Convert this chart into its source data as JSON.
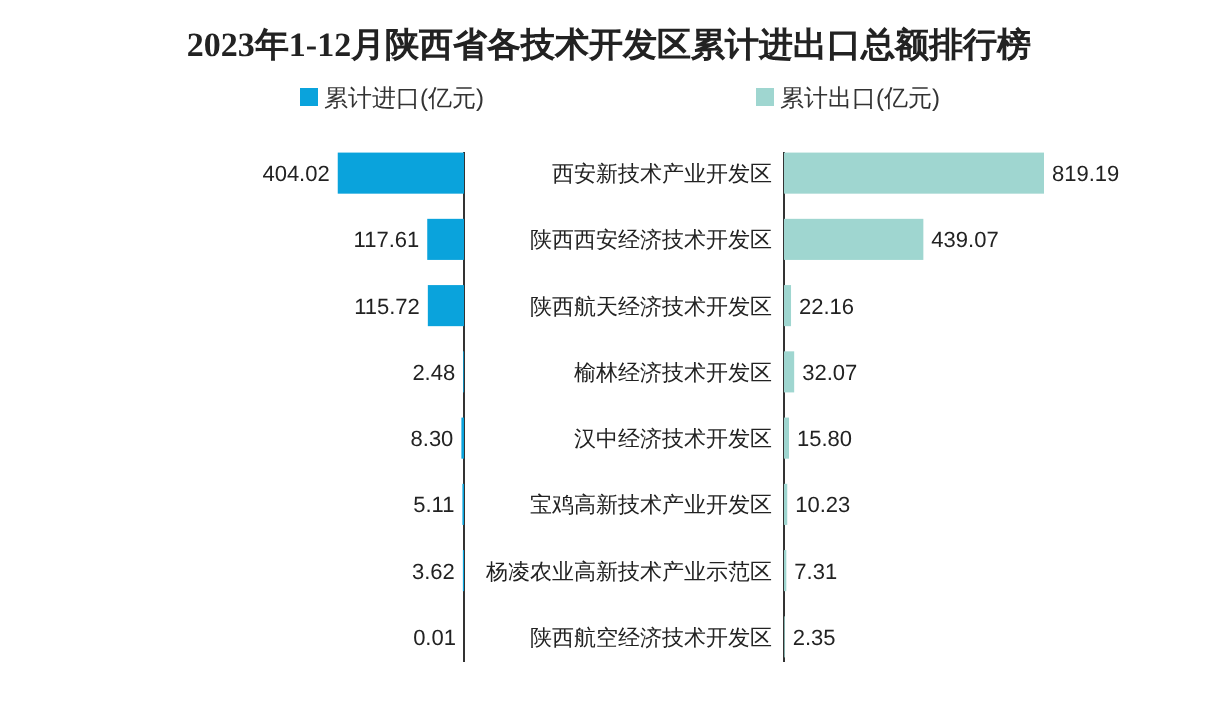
{
  "chart_data": [
    {
      "type": "bar",
      "orientation": "horizontal",
      "title": "2023年1-12月陕西省各技术开发区累计进出口总额排行榜",
      "tick_labels": "y",
      "categories": [
        "西安新技术产业开发区",
        "陕西西安经济技术开发区",
        "陕西航天经济技术开发区",
        "榆林经济技术开发区",
        "汉中经济技术开发区",
        "宝鸡高新技术产业开发区",
        "杨凌农业高新技术产业示范区",
        "陕西航空经济技术开发区"
      ],
      "series": [
        {
          "name": "累计进口(亿元)",
          "color": "#0aa3dc",
          "values": [
            404.02,
            117.61,
            115.72,
            2.48,
            8.3,
            5.11,
            3.62,
            0.01
          ],
          "value_labels": [
            "404.02",
            "117.61",
            "115.72",
            "2.48",
            "8.30",
            "5.11",
            "3.62",
            "0.01"
          ]
        }
      ],
      "legend": "top"
    },
    {
      "type": "bar",
      "orientation": "horizontal",
      "tick_labels": false,
      "categories": [
        null,
        null,
        null,
        null,
        null,
        null,
        null,
        null
      ],
      "series": [
        {
          "name": "累计出口(亿元)",
          "color": "#9fd6d0",
          "values": [
            819.19,
            439.07,
            22.16,
            32.07,
            15.8,
            10.23,
            7.31,
            2.35
          ],
          "value_labels": [
            "819.19",
            "439.07",
            "22.16",
            "32.07",
            "15.80",
            "10.23",
            "7.31",
            "2.35"
          ]
        }
      ],
      "legend": "top"
    }
  ]
}
